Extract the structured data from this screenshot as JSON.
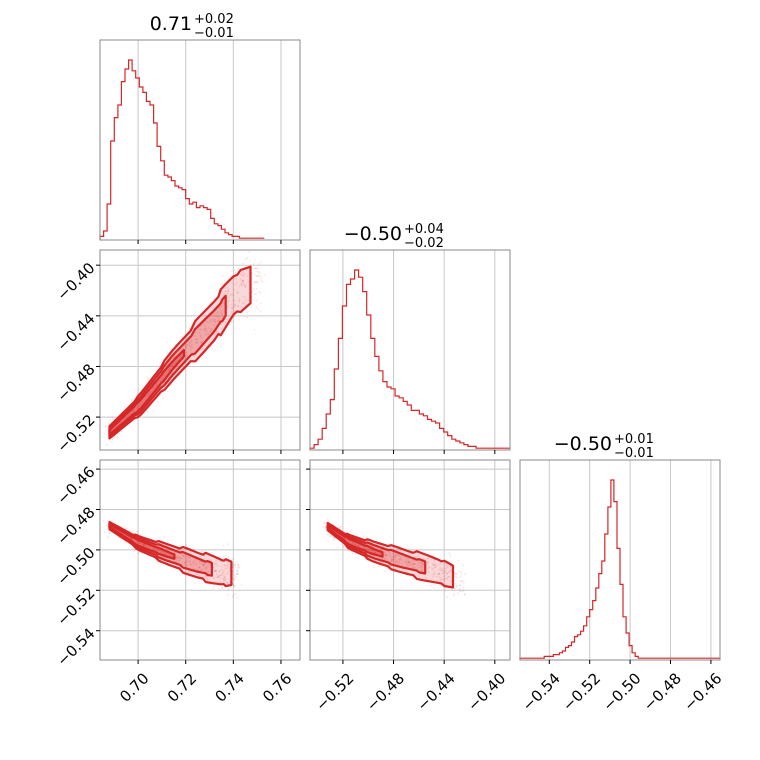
{
  "chart_data": {
    "type": "corner",
    "color": "#d62728",
    "parameters": [
      {
        "title": {
          "median": "0.71",
          "plus": "+0.02",
          "minus": "−0.01"
        },
        "range": [
          0.684,
          0.768
        ],
        "ticks": [
          0.7,
          0.72,
          0.74,
          0.76
        ],
        "tick_labels": [
          "0.70",
          "0.72",
          "0.74",
          "0.76"
        ]
      },
      {
        "title": {
          "median": "−0.50",
          "plus": "+0.04",
          "minus": "−0.02"
        },
        "range": [
          -0.546,
          -0.388
        ],
        "ticks": [
          -0.52,
          -0.48,
          -0.44,
          -0.4
        ],
        "tick_labels": [
          "−0.52",
          "−0.48",
          "−0.44",
          "−0.40"
        ]
      },
      {
        "title": {
          "median": "−0.50",
          "plus": "+0.01",
          "minus": "−0.01"
        },
        "range": [
          -0.5545,
          -0.4555
        ],
        "ticks": [
          -0.54,
          -0.52,
          -0.5,
          -0.48,
          -0.46
        ],
        "tick_labels": [
          "−0.54",
          "−0.52",
          "−0.50",
          "−0.48",
          "−0.46"
        ]
      }
    ],
    "histograms": [
      {
        "parameter": 0,
        "bin_start": 0.684,
        "bin_width": 0.0015,
        "counts": [
          2,
          5,
          20,
          55,
          68,
          75,
          88,
          95,
          100,
          94,
          90,
          85,
          82,
          77,
          75,
          65,
          52,
          44,
          36,
          35,
          33,
          30,
          29,
          28,
          23,
          20,
          21,
          18,
          19,
          18,
          17,
          12,
          9,
          8,
          6,
          4,
          3,
          2,
          2,
          1,
          1,
          1,
          1,
          1,
          1,
          1
        ]
      },
      {
        "parameter": 1,
        "bin_start": -0.546,
        "bin_width": 0.0032,
        "counts": [
          1,
          3,
          6,
          12,
          20,
          28,
          45,
          62,
          80,
          92,
          95,
          100,
          96,
          88,
          75,
          62,
          52,
          44,
          38,
          35,
          34,
          30,
          29,
          27,
          25,
          22,
          22,
          20,
          19,
          17,
          16,
          15,
          12,
          10,
          8,
          6,
          5,
          4,
          3,
          2,
          2,
          1,
          1,
          1,
          1,
          1,
          1,
          1,
          1,
          1
        ]
      },
      {
        "parameter": 2,
        "bin_start": -0.5545,
        "bin_width": 0.0015,
        "counts": [
          1,
          1,
          1,
          1,
          1,
          1,
          1,
          1,
          2,
          2,
          2,
          3,
          3,
          4,
          5,
          7,
          8,
          10,
          13,
          14,
          16,
          19,
          24,
          28,
          33,
          40,
          48,
          55,
          70,
          85,
          100,
          88,
          62,
          42,
          24,
          15,
          8,
          4,
          2,
          1,
          1,
          1,
          1,
          1,
          1,
          1,
          1,
          1,
          1,
          1,
          1,
          1,
          1,
          1,
          1,
          1,
          1,
          1,
          1,
          1,
          1,
          1,
          1,
          1,
          1,
          1
        ]
      }
    ],
    "pair_trends": [
      {
        "x_param": 0,
        "y_param": 1,
        "x": [
          0.688,
          0.701,
          0.715,
          0.732,
          0.74,
          0.752
        ],
        "y": [
          -0.532,
          -0.51,
          -0.478,
          -0.444,
          -0.424,
          -0.41
        ],
        "spread": [
          0.004,
          0.005,
          0.006,
          0.008,
          0.01,
          0.012
        ]
      },
      {
        "x_param": 0,
        "y_param": 2,
        "x": [
          0.688,
          0.7,
          0.712,
          0.725,
          0.735,
          0.742
        ],
        "y": [
          -0.488,
          -0.4965,
          -0.502,
          -0.5075,
          -0.511,
          -0.512
        ],
        "spread": [
          0.0015,
          0.002,
          0.0025,
          0.0032,
          0.004,
          0.0048
        ]
      },
      {
        "x_param": 1,
        "y_param": 2,
        "x": [
          -0.532,
          -0.515,
          -0.495,
          -0.47,
          -0.445,
          -0.425
        ],
        "y": [
          -0.4885,
          -0.496,
          -0.501,
          -0.506,
          -0.5105,
          -0.515
        ],
        "spread": [
          0.0015,
          0.002,
          0.0025,
          0.003,
          0.0038,
          0.0045
        ]
      }
    ],
    "grid": true
  }
}
